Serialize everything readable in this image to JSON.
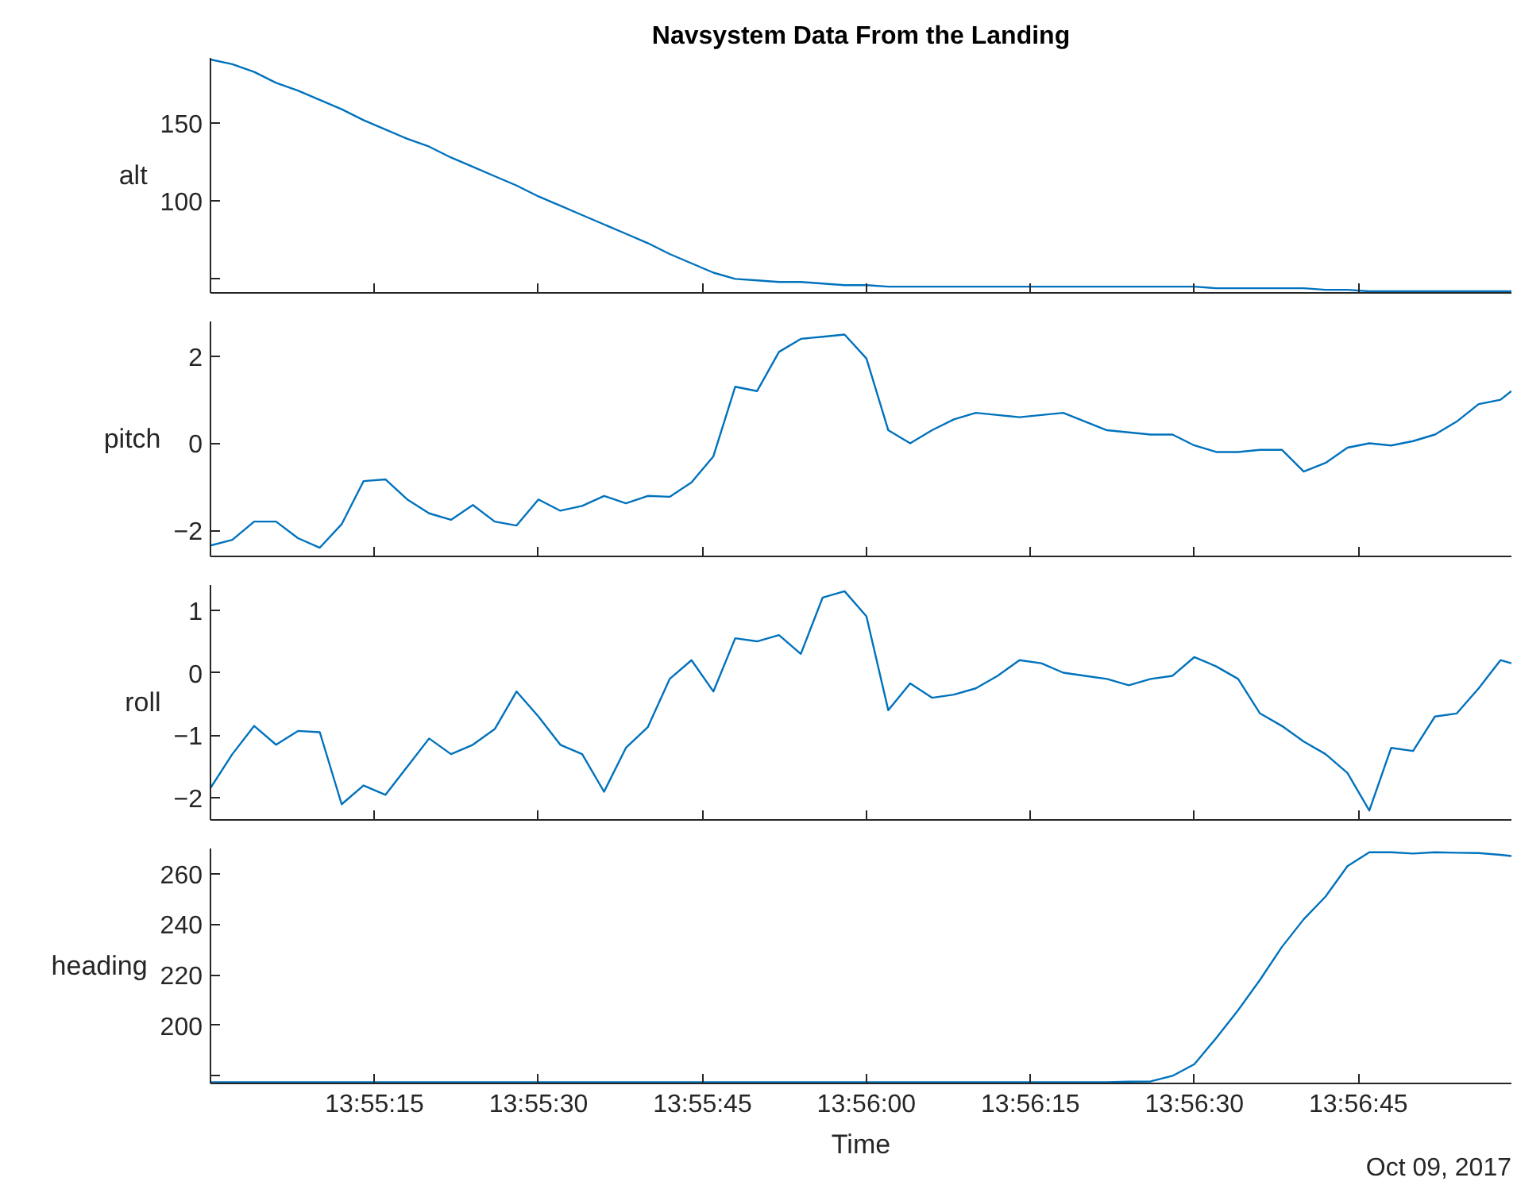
{
  "chart_data": [
    {
      "type": "line",
      "title": "Navsystem Data From the Landing",
      "ylabel": "alt",
      "tick_labels": "y",
      "color": "#0072bd",
      "x": [
        "2017-10-09T13:55:00",
        "2017-10-09T13:55:02",
        "2017-10-09T13:55:04",
        "2017-10-09T13:55:06",
        "2017-10-09T13:55:08",
        "2017-10-09T13:55:10",
        "2017-10-09T13:55:12",
        "2017-10-09T13:55:14",
        "2017-10-09T13:55:16",
        "2017-10-09T13:55:18",
        "2017-10-09T13:55:20",
        "2017-10-09T13:55:22",
        "2017-10-09T13:55:24",
        "2017-10-09T13:55:26",
        "2017-10-09T13:55:28",
        "2017-10-09T13:55:30",
        "2017-10-09T13:55:32",
        "2017-10-09T13:55:34",
        "2017-10-09T13:55:36",
        "2017-10-09T13:55:38",
        "2017-10-09T13:55:40",
        "2017-10-09T13:55:42",
        "2017-10-09T13:55:44",
        "2017-10-09T13:55:46",
        "2017-10-09T13:55:48",
        "2017-10-09T13:55:50",
        "2017-10-09T13:55:52",
        "2017-10-09T13:55:54",
        "2017-10-09T13:55:56",
        "2017-10-09T13:55:58",
        "2017-10-09T13:56:00",
        "2017-10-09T13:56:02",
        "2017-10-09T13:56:04",
        "2017-10-09T13:56:06",
        "2017-10-09T13:56:08",
        "2017-10-09T13:56:10",
        "2017-10-09T13:56:12",
        "2017-10-09T13:56:14",
        "2017-10-09T13:56:16",
        "2017-10-09T13:56:18",
        "2017-10-09T13:56:20",
        "2017-10-09T13:56:22",
        "2017-10-09T13:56:24",
        "2017-10-09T13:56:26",
        "2017-10-09T13:56:28",
        "2017-10-09T13:56:30",
        "2017-10-09T13:56:32",
        "2017-10-09T13:56:34",
        "2017-10-09T13:56:36",
        "2017-10-09T13:56:38",
        "2017-10-09T13:56:40",
        "2017-10-09T13:56:42",
        "2017-10-09T13:56:44",
        "2017-10-09T13:56:46",
        "2017-10-09T13:56:48",
        "2017-10-09T13:56:50",
        "2017-10-09T13:56:52",
        "2017-10-09T13:56:54",
        "2017-10-09T13:56:56",
        "2017-10-09T13:56:58",
        "2017-10-09T13:56:59"
      ],
      "values": [
        191,
        188,
        183,
        176,
        171,
        165,
        159,
        152,
        146,
        140,
        135,
        128,
        122,
        116,
        110,
        103,
        97,
        91,
        85,
        79,
        73,
        66,
        60,
        54,
        50,
        49,
        48,
        48,
        47,
        46,
        46,
        45,
        45,
        45,
        45,
        45,
        45,
        45,
        45,
        45,
        45,
        45,
        45,
        45,
        45,
        45,
        44,
        44,
        44,
        44,
        44,
        43,
        43,
        42,
        42,
        42,
        42,
        42,
        42,
        42,
        42
      ],
      "xlim": [
        "2017-10-09T13:55:00",
        "2017-10-09T13:56:59"
      ],
      "xticks": [
        {
          "value": "2017-10-09T13:55:15",
          "label": null
        },
        {
          "value": "2017-10-09T13:55:30",
          "label": null
        },
        {
          "value": "2017-10-09T13:55:45",
          "label": null
        },
        {
          "value": "2017-10-09T13:56:00",
          "label": null
        },
        {
          "value": "2017-10-09T13:56:15",
          "label": null
        },
        {
          "value": "2017-10-09T13:56:30",
          "label": null
        },
        {
          "value": "2017-10-09T13:56:45",
          "label": null
        }
      ],
      "ylim": [
        41,
        192
      ],
      "yticks": [
        {
          "value": 50,
          "label": null
        },
        100,
        150
      ]
    },
    {
      "type": "line",
      "ylabel": "pitch",
      "tick_labels": "y",
      "color": "#0072bd",
      "x": [
        "2017-10-09T13:55:00",
        "2017-10-09T13:55:02",
        "2017-10-09T13:55:04",
        "2017-10-09T13:55:06",
        "2017-10-09T13:55:08",
        "2017-10-09T13:55:10",
        "2017-10-09T13:55:12",
        "2017-10-09T13:55:14",
        "2017-10-09T13:55:16",
        "2017-10-09T13:55:18",
        "2017-10-09T13:55:20",
        "2017-10-09T13:55:22",
        "2017-10-09T13:55:24",
        "2017-10-09T13:55:26",
        "2017-10-09T13:55:28",
        "2017-10-09T13:55:30",
        "2017-10-09T13:55:32",
        "2017-10-09T13:55:34",
        "2017-10-09T13:55:36",
        "2017-10-09T13:55:38",
        "2017-10-09T13:55:40",
        "2017-10-09T13:55:42",
        "2017-10-09T13:55:44",
        "2017-10-09T13:55:46",
        "2017-10-09T13:55:48",
        "2017-10-09T13:55:50",
        "2017-10-09T13:55:52",
        "2017-10-09T13:55:54",
        "2017-10-09T13:55:56",
        "2017-10-09T13:55:58",
        "2017-10-09T13:56:00",
        "2017-10-09T13:56:02",
        "2017-10-09T13:56:04",
        "2017-10-09T13:56:06",
        "2017-10-09T13:56:08",
        "2017-10-09T13:56:10",
        "2017-10-09T13:56:12",
        "2017-10-09T13:56:14",
        "2017-10-09T13:56:16",
        "2017-10-09T13:56:18",
        "2017-10-09T13:56:20",
        "2017-10-09T13:56:22",
        "2017-10-09T13:56:24",
        "2017-10-09T13:56:26",
        "2017-10-09T13:56:28",
        "2017-10-09T13:56:30",
        "2017-10-09T13:56:32",
        "2017-10-09T13:56:34",
        "2017-10-09T13:56:36",
        "2017-10-09T13:56:38",
        "2017-10-09T13:56:40",
        "2017-10-09T13:56:42",
        "2017-10-09T13:56:44",
        "2017-10-09T13:56:46",
        "2017-10-09T13:56:48",
        "2017-10-09T13:56:50",
        "2017-10-09T13:56:52",
        "2017-10-09T13:56:54",
        "2017-10-09T13:56:56",
        "2017-10-09T13:56:58",
        "2017-10-09T13:56:59"
      ],
      "values": [
        -2.35,
        -2.22,
        -1.8,
        -1.8,
        -2.18,
        -2.4,
        -1.86,
        -0.87,
        -0.83,
        -1.29,
        -1.61,
        -1.76,
        -1.42,
        -1.8,
        -1.89,
        -1.29,
        -1.55,
        -1.44,
        -1.21,
        -1.38,
        -1.21,
        -1.23,
        -0.9,
        -0.3,
        1.3,
        1.2,
        2.1,
        2.4,
        2.45,
        2.5,
        1.95,
        0.3,
        0.0,
        0.3,
        0.55,
        0.7,
        0.65,
        0.6,
        0.65,
        0.7,
        0.5,
        0.3,
        0.25,
        0.2,
        0.2,
        -0.05,
        -0.2,
        -0.2,
        -0.15,
        -0.15,
        -0.65,
        -0.45,
        -0.1,
        0.0,
        -0.05,
        0.05,
        0.2,
        0.5,
        0.9,
        1.0,
        1.2
      ],
      "xlim": [
        "2017-10-09T13:55:00",
        "2017-10-09T13:56:59"
      ],
      "xticks": [
        {
          "value": "2017-10-09T13:55:15",
          "label": null
        },
        {
          "value": "2017-10-09T13:55:30",
          "label": null
        },
        {
          "value": "2017-10-09T13:55:45",
          "label": null
        },
        {
          "value": "2017-10-09T13:56:00",
          "label": null
        },
        {
          "value": "2017-10-09T13:56:15",
          "label": null
        },
        {
          "value": "2017-10-09T13:56:30",
          "label": null
        },
        {
          "value": "2017-10-09T13:56:45",
          "label": null
        }
      ],
      "ylim": [
        -2.6,
        2.8
      ],
      "yticks": [
        -2,
        0,
        2
      ]
    },
    {
      "type": "line",
      "ylabel": "roll",
      "tick_labels": "y",
      "color": "#0072bd",
      "x": [
        "2017-10-09T13:55:00",
        "2017-10-09T13:55:02",
        "2017-10-09T13:55:04",
        "2017-10-09T13:55:06",
        "2017-10-09T13:55:08",
        "2017-10-09T13:55:10",
        "2017-10-09T13:55:12",
        "2017-10-09T13:55:14",
        "2017-10-09T13:55:16",
        "2017-10-09T13:55:18",
        "2017-10-09T13:55:20",
        "2017-10-09T13:55:22",
        "2017-10-09T13:55:24",
        "2017-10-09T13:55:26",
        "2017-10-09T13:55:28",
        "2017-10-09T13:55:30",
        "2017-10-09T13:55:32",
        "2017-10-09T13:55:34",
        "2017-10-09T13:55:36",
        "2017-10-09T13:55:38",
        "2017-10-09T13:55:40",
        "2017-10-09T13:55:42",
        "2017-10-09T13:55:44",
        "2017-10-09T13:55:46",
        "2017-10-09T13:55:48",
        "2017-10-09T13:55:50",
        "2017-10-09T13:55:52",
        "2017-10-09T13:55:54",
        "2017-10-09T13:55:56",
        "2017-10-09T13:55:58",
        "2017-10-09T13:56:00",
        "2017-10-09T13:56:02",
        "2017-10-09T13:56:04",
        "2017-10-09T13:56:06",
        "2017-10-09T13:56:08",
        "2017-10-09T13:56:10",
        "2017-10-09T13:56:12",
        "2017-10-09T13:56:14",
        "2017-10-09T13:56:16",
        "2017-10-09T13:56:18",
        "2017-10-09T13:56:20",
        "2017-10-09T13:56:22",
        "2017-10-09T13:56:24",
        "2017-10-09T13:56:26",
        "2017-10-09T13:56:28",
        "2017-10-09T13:56:30",
        "2017-10-09T13:56:32",
        "2017-10-09T13:56:34",
        "2017-10-09T13:56:36",
        "2017-10-09T13:56:38",
        "2017-10-09T13:56:40",
        "2017-10-09T13:56:42",
        "2017-10-09T13:56:44",
        "2017-10-09T13:56:46",
        "2017-10-09T13:56:48",
        "2017-10-09T13:56:50",
        "2017-10-09T13:56:52",
        "2017-10-09T13:56:54",
        "2017-10-09T13:56:56",
        "2017-10-09T13:56:58",
        "2017-10-09T13:56:59"
      ],
      "values": [
        -1.84,
        -1.3,
        -0.85,
        -1.15,
        -0.93,
        -0.95,
        -2.1,
        -1.8,
        -1.95,
        -1.5,
        -1.05,
        -1.3,
        -1.15,
        -0.9,
        -0.3,
        -0.7,
        -1.15,
        -1.3,
        -1.9,
        -1.2,
        -0.87,
        -0.1,
        0.2,
        -0.3,
        0.55,
        0.5,
        0.6,
        0.3,
        1.2,
        1.3,
        0.9,
        -0.6,
        -0.17,
        -0.4,
        -0.35,
        -0.25,
        -0.05,
        0.2,
        0.15,
        0.0,
        -0.05,
        -0.1,
        -0.2,
        -0.1,
        -0.05,
        0.25,
        0.1,
        -0.1,
        -0.65,
        -0.85,
        -1.1,
        -1.3,
        -1.6,
        -2.2,
        -1.2,
        -1.25,
        -0.7,
        -0.65,
        -0.25,
        0.2,
        0.15
      ],
      "xlim": [
        "2017-10-09T13:55:00",
        "2017-10-09T13:56:59"
      ],
      "xticks": [
        {
          "value": "2017-10-09T13:55:15",
          "label": null
        },
        {
          "value": "2017-10-09T13:55:30",
          "label": null
        },
        {
          "value": "2017-10-09T13:55:45",
          "label": null
        },
        {
          "value": "2017-10-09T13:56:00",
          "label": null
        },
        {
          "value": "2017-10-09T13:56:15",
          "label": null
        },
        {
          "value": "2017-10-09T13:56:30",
          "label": null
        },
        {
          "value": "2017-10-09T13:56:45",
          "label": null
        }
      ],
      "ylim": [
        -2.35,
        1.4
      ],
      "yticks": [
        -2,
        -1,
        0,
        1
      ]
    },
    {
      "type": "line",
      "ylabel": "heading",
      "xlabel": "Time",
      "color": "#0072bd",
      "x": [
        "2017-10-09T13:55:00",
        "2017-10-09T13:55:02",
        "2017-10-09T13:55:04",
        "2017-10-09T13:55:06",
        "2017-10-09T13:55:08",
        "2017-10-09T13:55:10",
        "2017-10-09T13:55:12",
        "2017-10-09T13:55:14",
        "2017-10-09T13:55:16",
        "2017-10-09T13:55:18",
        "2017-10-09T13:55:20",
        "2017-10-09T13:55:22",
        "2017-10-09T13:55:24",
        "2017-10-09T13:55:26",
        "2017-10-09T13:55:28",
        "2017-10-09T13:55:30",
        "2017-10-09T13:55:32",
        "2017-10-09T13:55:34",
        "2017-10-09T13:55:36",
        "2017-10-09T13:55:38",
        "2017-10-09T13:55:40",
        "2017-10-09T13:55:42",
        "2017-10-09T13:55:44",
        "2017-10-09T13:55:46",
        "2017-10-09T13:55:48",
        "2017-10-09T13:55:50",
        "2017-10-09T13:55:52",
        "2017-10-09T13:55:54",
        "2017-10-09T13:55:56",
        "2017-10-09T13:55:58",
        "2017-10-09T13:56:00",
        "2017-10-09T13:56:02",
        "2017-10-09T13:56:04",
        "2017-10-09T13:56:06",
        "2017-10-09T13:56:08",
        "2017-10-09T13:56:10",
        "2017-10-09T13:56:12",
        "2017-10-09T13:56:14",
        "2017-10-09T13:56:16",
        "2017-10-09T13:56:18",
        "2017-10-09T13:56:20",
        "2017-10-09T13:56:22",
        "2017-10-09T13:56:24",
        "2017-10-09T13:56:26",
        "2017-10-09T13:56:28",
        "2017-10-09T13:56:30",
        "2017-10-09T13:56:32",
        "2017-10-09T13:56:34",
        "2017-10-09T13:56:36",
        "2017-10-09T13:56:38",
        "2017-10-09T13:56:40",
        "2017-10-09T13:56:42",
        "2017-10-09T13:56:44",
        "2017-10-09T13:56:46",
        "2017-10-09T13:56:48",
        "2017-10-09T13:56:50",
        "2017-10-09T13:56:52",
        "2017-10-09T13:56:54",
        "2017-10-09T13:56:56",
        "2017-10-09T13:56:58",
        "2017-10-09T13:56:59"
      ],
      "values": [
        177.5,
        177.5,
        177.5,
        177.5,
        177.5,
        177.5,
        177.5,
        177.5,
        177.5,
        177.5,
        177.5,
        177.5,
        177.5,
        177.5,
        177.5,
        177.5,
        177.5,
        177.5,
        177.5,
        177.5,
        177.5,
        177.5,
        177.5,
        177.5,
        177.5,
        177.5,
        177.5,
        177.5,
        177.5,
        177.5,
        177.5,
        177.5,
        177.5,
        177.5,
        177.5,
        177.5,
        177.5,
        177.5,
        177.5,
        177.5,
        177.5,
        177.5,
        177.7,
        177.8,
        180,
        184.6,
        195,
        206,
        218,
        231,
        242,
        251,
        263,
        268.5,
        268.5,
        268,
        268.5,
        268.3,
        268.2,
        267.5,
        267
      ],
      "xlim": [
        "2017-10-09T13:55:00",
        "2017-10-09T13:56:59"
      ],
      "xticks": [
        {
          "value": "2017-10-09T13:55:15",
          "label": "13:55:15"
        },
        {
          "value": "2017-10-09T13:55:30",
          "label": "13:55:30"
        },
        {
          "value": "2017-10-09T13:55:45",
          "label": "13:55:45"
        },
        {
          "value": "2017-10-09T13:56:00",
          "label": "13:56:00"
        },
        {
          "value": "2017-10-09T13:56:15",
          "label": "13:56:15"
        },
        {
          "value": "2017-10-09T13:56:30",
          "label": "13:56:30"
        },
        {
          "value": "2017-10-09T13:56:45",
          "label": "13:56:45"
        }
      ],
      "ylim": [
        177,
        270
      ],
      "yticks": [
        {
          "value": 180,
          "label": null
        },
        200,
        220,
        240,
        260
      ],
      "annotations": [
        "Oct 09, 2017"
      ]
    }
  ]
}
